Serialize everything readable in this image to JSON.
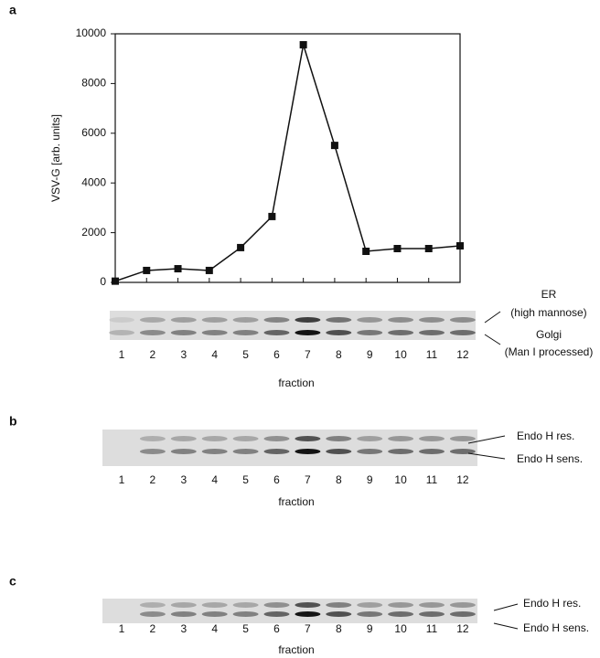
{
  "chart_data": {
    "type": "line",
    "y_label": "VSV-G [arb. units]",
    "categories": [
      "1",
      "2",
      "3",
      "4",
      "5",
      "6",
      "7",
      "8",
      "9",
      "10",
      "11",
      "12"
    ],
    "values": [
      50,
      480,
      550,
      480,
      1400,
      2650,
      9560,
      5510,
      1250,
      1360,
      1360,
      1470
    ],
    "color": "#111111",
    "ylim": [
      0,
      10000
    ],
    "yticks": [
      0,
      2000,
      4000,
      6000,
      8000,
      10000
    ]
  },
  "gels": [
    {
      "panel": "a",
      "xlabel": "fraction",
      "band_labels": [
        "ER",
        "(high mannose)",
        "Golgi",
        "(Man I processed)"
      ]
    },
    {
      "panel": "b",
      "lanes": [
        "1",
        "2",
        "3",
        "4",
        "5",
        "6",
        "7",
        "8",
        "9",
        "10",
        "11",
        "12"
      ],
      "xlabel": "fraction",
      "band_labels": [
        "Endo H res.",
        "Endo H sens."
      ]
    },
    {
      "panel": "c",
      "lanes": [
        "1",
        "2",
        "3",
        "4",
        "5",
        "6",
        "7",
        "8",
        "9",
        "10",
        "11",
        "12"
      ],
      "xlabel": "fraction",
      "band_labels": [
        "Endo H res.",
        "Endo H sens."
      ]
    }
  ]
}
